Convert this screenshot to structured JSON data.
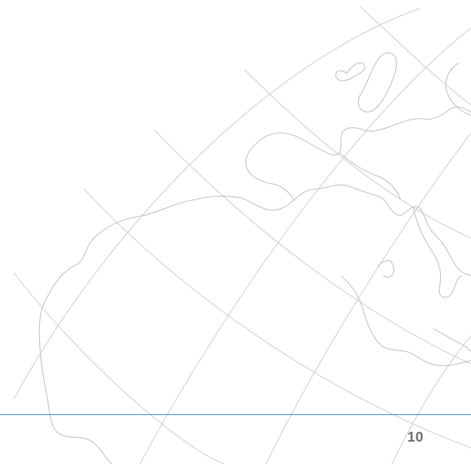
{
  "footer": {
    "page_number": "10",
    "rule_color": "#2f79c9"
  },
  "background": {
    "graphic": "world-map-outline",
    "line_color": "#c8c8c8"
  }
}
